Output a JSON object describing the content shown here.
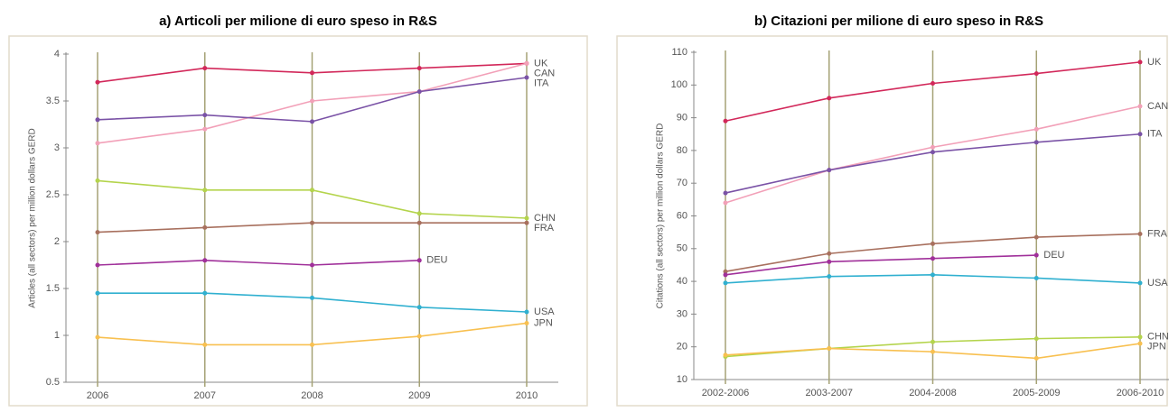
{
  "chart_data": [
    {
      "type": "line",
      "title": "a) Articoli per milione di euro speso in R&S",
      "y_label": "Articles (all sectors) per million dollars GERD",
      "categories": [
        "2006",
        "2007",
        "2008",
        "2009",
        "2010"
      ],
      "ylim": [
        0.5,
        4
      ],
      "yticks": [
        0.5,
        1,
        1.5,
        2,
        2.5,
        3,
        3.5,
        4
      ],
      "grid": true,
      "series": [
        {
          "name": "UK",
          "color": "#d2285a",
          "values": [
            3.7,
            3.85,
            3.8,
            3.85,
            3.9
          ]
        },
        {
          "name": "CAN",
          "color": "#f2a0b8",
          "values": [
            3.05,
            3.2,
            3.5,
            3.6,
            3.9
          ]
        },
        {
          "name": "ITA",
          "color": "#7a52a6",
          "values": [
            3.3,
            3.35,
            3.28,
            3.6,
            3.75
          ]
        },
        {
          "name": "CHN",
          "color": "#b4d44c",
          "values": [
            2.65,
            2.55,
            2.55,
            2.3,
            2.25
          ]
        },
        {
          "name": "FRA",
          "color": "#a8705e",
          "values": [
            2.1,
            2.15,
            2.2,
            2.2,
            2.2
          ]
        },
        {
          "name": "DEU",
          "color": "#a0309a",
          "values": [
            1.75,
            1.8,
            1.75,
            1.8,
            null
          ]
        },
        {
          "name": "USA",
          "color": "#30b0d0",
          "values": [
            1.45,
            1.45,
            1.4,
            1.3,
            1.25
          ]
        },
        {
          "name": "JPN",
          "color": "#f8c050",
          "values": [
            0.98,
            0.9,
            0.9,
            0.99,
            1.13
          ]
        }
      ]
    },
    {
      "type": "line",
      "title": "b) Citazioni per milione di euro speso in R&S",
      "y_label": "Citations (all sectors) per million dollars GERD",
      "categories": [
        "2002-2006",
        "2003-2007",
        "2004-2008",
        "2005-2009",
        "2006-2010"
      ],
      "ylim": [
        10,
        110
      ],
      "yticks": [
        10,
        20,
        30,
        40,
        50,
        60,
        70,
        80,
        90,
        100,
        110
      ],
      "grid": true,
      "series": [
        {
          "name": "UK",
          "color": "#d2285a",
          "values": [
            89,
            96,
            100.5,
            103.5,
            107
          ]
        },
        {
          "name": "CAN",
          "color": "#f2a0b8",
          "values": [
            64,
            74,
            81,
            86.5,
            93.5
          ]
        },
        {
          "name": "ITA",
          "color": "#7a52a6",
          "values": [
            67,
            74,
            79.5,
            82.5,
            85
          ]
        },
        {
          "name": "FRA",
          "color": "#a8705e",
          "values": [
            43,
            48.5,
            51.5,
            53.5,
            54.5
          ]
        },
        {
          "name": "DEU",
          "color": "#a0309a",
          "values": [
            42,
            46,
            47,
            48,
            null
          ]
        },
        {
          "name": "USA",
          "color": "#30b0d0",
          "values": [
            39.5,
            41.5,
            42,
            41,
            39.5
          ]
        },
        {
          "name": "CHN",
          "color": "#b4d44c",
          "values": [
            17,
            19.5,
            21.5,
            22.5,
            23
          ]
        },
        {
          "name": "JPN",
          "color": "#f8c050",
          "values": [
            17.5,
            19.5,
            18.5,
            16.5,
            21
          ]
        }
      ]
    }
  ]
}
